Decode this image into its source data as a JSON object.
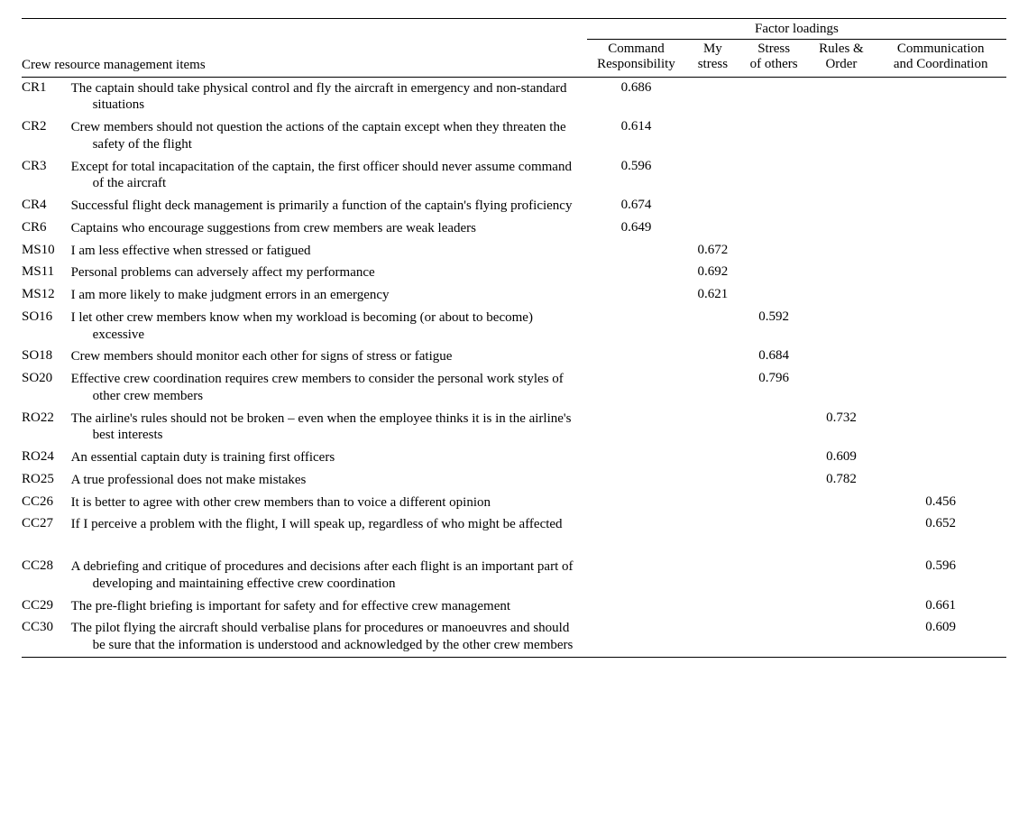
{
  "table": {
    "left_header": "Crew resource management items",
    "super_header": "Factor loadings",
    "factors": [
      "Command\nResponsibility",
      "My\nstress",
      "Stress\nof others",
      "Rules &\nOrder",
      "Communication\nand Coordination"
    ],
    "col_widths": {
      "code": 54,
      "text": 566,
      "f1": 108,
      "f2": 60,
      "f3": 74,
      "f4": 74,
      "f5": 144
    },
    "rows": [
      {
        "code": "CR1",
        "text": "The captain should take physical control and fly the aircraft in emergency and non-standard situations",
        "v": [
          0.686,
          null,
          null,
          null,
          null
        ]
      },
      {
        "code": "CR2",
        "text": "Crew members should not question the actions of the captain except when they threaten the safety of the flight",
        "v": [
          0.614,
          null,
          null,
          null,
          null
        ]
      },
      {
        "code": "CR3",
        "text": "Except for total incapacitation of the captain, the first officer should never assume command of the aircraft",
        "v": [
          0.596,
          null,
          null,
          null,
          null
        ]
      },
      {
        "code": "CR4",
        "text": "Successful flight deck management is primarily a function of the captain's flying proficiency",
        "v": [
          0.674,
          null,
          null,
          null,
          null
        ]
      },
      {
        "code": "CR6",
        "text": "Captains who encourage suggestions from crew members are weak leaders",
        "v": [
          0.649,
          null,
          null,
          null,
          null
        ]
      },
      {
        "code": "MS10",
        "text": "I am less effective when stressed or fatigued",
        "v": [
          null,
          0.672,
          null,
          null,
          null
        ]
      },
      {
        "code": "MS11",
        "text": "Personal problems can adversely affect my performance",
        "v": [
          null,
          0.692,
          null,
          null,
          null
        ]
      },
      {
        "code": "MS12",
        "text": "I am more likely to make judgment errors in an emergency",
        "v": [
          null,
          0.621,
          null,
          null,
          null
        ]
      },
      {
        "code": "SO16",
        "text": "I let other crew members know when my workload is becoming (or about to become) excessive",
        "v": [
          null,
          null,
          0.592,
          null,
          null
        ]
      },
      {
        "code": "SO18",
        "text": "Crew members should monitor each other for signs of stress or fatigue",
        "v": [
          null,
          null,
          0.684,
          null,
          null
        ]
      },
      {
        "code": "SO20",
        "text": "Effective crew coordination requires crew members to consider the personal work styles of other crew members",
        "v": [
          null,
          null,
          0.796,
          null,
          null
        ]
      },
      {
        "code": "RO22",
        "text": "The airline's rules should not be broken – even when the employee thinks it is in the airline's best interests",
        "v": [
          null,
          null,
          null,
          0.732,
          null
        ]
      },
      {
        "code": "RO24",
        "text": "An essential captain duty is training first officers",
        "v": [
          null,
          null,
          null,
          0.609,
          null
        ]
      },
      {
        "code": "RO25",
        "text": "A true professional does not make mistakes",
        "v": [
          null,
          null,
          null,
          0.782,
          null
        ]
      },
      {
        "code": "CC26",
        "text": "It is better to agree with other crew members than to voice a different opinion",
        "v": [
          null,
          null,
          null,
          null,
          0.456
        ]
      },
      {
        "code": "CC27",
        "text": "If I perceive a problem with the flight, I will speak up, regardless of who might be affected",
        "v": [
          null,
          null,
          null,
          null,
          0.652
        ],
        "gap_after": true
      },
      {
        "code": "CC28",
        "text": "A debriefing and critique of procedures and decisions after each flight is an important part of developing and maintaining effective crew coordination",
        "v": [
          null,
          null,
          null,
          null,
          0.596
        ]
      },
      {
        "code": "CC29",
        "text": "The pre-flight briefing is important for safety and for effective crew management",
        "v": [
          null,
          null,
          null,
          null,
          0.661
        ]
      },
      {
        "code": "CC30",
        "text": "The pilot flying the aircraft should verbalise plans for procedures or manoeuvres and should be sure that the information is understood and acknowledged by the other crew members",
        "v": [
          null,
          null,
          null,
          null,
          0.609
        ]
      }
    ],
    "styling": {
      "font_family": "Times New Roman",
      "font_size_pt": 11,
      "text_color": "#000000",
      "background_color": "#ffffff",
      "rule_color": "#000000",
      "decimal_places": 3
    }
  }
}
